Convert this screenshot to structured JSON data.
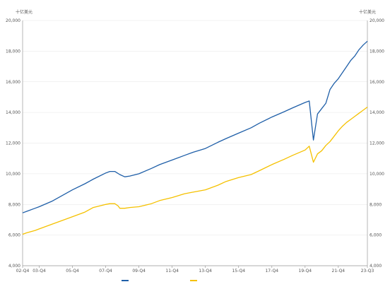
{
  "chart_data": {
    "type": "line",
    "title": "",
    "unit_left": "十亿美元",
    "unit_right": "十亿美元",
    "source": "",
    "grid": true,
    "legend_position": "bottom",
    "ylim": [
      4000,
      20000
    ],
    "yticks": [
      "4,000",
      "6,000",
      "8,000",
      "10,000",
      "12,000",
      "14,000",
      "16,000",
      "18,000",
      "20,000"
    ],
    "ytick_values": [
      4000,
      6000,
      8000,
      10000,
      12000,
      14000,
      16000,
      18000,
      20000
    ],
    "xlim": [
      2002.75,
      2023.5
    ],
    "xticks": [
      "02-Q4",
      "03-Q4",
      "05-Q4",
      "07-Q4",
      "09-Q4",
      "11-Q4",
      "13-Q4",
      "15-Q4",
      "17-Q4",
      "19-Q4",
      "21-Q4",
      "23-Q3"
    ],
    "xtick_values": [
      2002.75,
      2003.75,
      2005.75,
      2007.75,
      2009.75,
      2011.75,
      2013.75,
      2015.75,
      2017.75,
      2019.75,
      2021.75,
      2023.5
    ],
    "series": [
      {
        "name": "",
        "color": "#1f5fa8",
        "points": [
          [
            2002.75,
            7450
          ],
          [
            2003.0,
            7550
          ],
          [
            2003.5,
            7750
          ],
          [
            2003.75,
            7850
          ],
          [
            2004.5,
            8200
          ],
          [
            2005.0,
            8500
          ],
          [
            2005.75,
            8950
          ],
          [
            2006.5,
            9350
          ],
          [
            2007.0,
            9650
          ],
          [
            2007.75,
            10050
          ],
          [
            2008.0,
            10150
          ],
          [
            2008.3,
            10150
          ],
          [
            2008.6,
            9950
          ],
          [
            2008.9,
            9800
          ],
          [
            2009.2,
            9850
          ],
          [
            2009.75,
            10000
          ],
          [
            2010.5,
            10350
          ],
          [
            2011.0,
            10600
          ],
          [
            2011.75,
            10900
          ],
          [
            2012.5,
            11200
          ],
          [
            2013.0,
            11400
          ],
          [
            2013.75,
            11650
          ],
          [
            2014.5,
            12050
          ],
          [
            2015.0,
            12300
          ],
          [
            2015.75,
            12650
          ],
          [
            2016.5,
            13000
          ],
          [
            2017.0,
            13300
          ],
          [
            2017.75,
            13700
          ],
          [
            2018.5,
            14050
          ],
          [
            2019.0,
            14300
          ],
          [
            2019.75,
            14650
          ],
          [
            2020.0,
            14750
          ],
          [
            2020.25,
            12200
          ],
          [
            2020.5,
            13900
          ],
          [
            2020.75,
            14250
          ],
          [
            2021.0,
            14600
          ],
          [
            2021.25,
            15500
          ],
          [
            2021.5,
            15900
          ],
          [
            2021.75,
            16200
          ],
          [
            2022.0,
            16600
          ],
          [
            2022.25,
            17000
          ],
          [
            2022.5,
            17400
          ],
          [
            2022.75,
            17700
          ],
          [
            2023.0,
            18100
          ],
          [
            2023.25,
            18400
          ],
          [
            2023.5,
            18650
          ]
        ]
      },
      {
        "name": "",
        "color": "#f5c100",
        "points": [
          [
            2002.75,
            6050
          ],
          [
            2003.0,
            6150
          ],
          [
            2003.5,
            6300
          ],
          [
            2003.75,
            6400
          ],
          [
            2004.5,
            6700
          ],
          [
            2005.0,
            6900
          ],
          [
            2005.75,
            7200
          ],
          [
            2006.5,
            7500
          ],
          [
            2007.0,
            7800
          ],
          [
            2007.75,
            8000
          ],
          [
            2008.0,
            8050
          ],
          [
            2008.3,
            8050
          ],
          [
            2008.5,
            7900
          ],
          [
            2008.6,
            7750
          ],
          [
            2008.9,
            7750
          ],
          [
            2009.2,
            7800
          ],
          [
            2009.75,
            7850
          ],
          [
            2010.5,
            8050
          ],
          [
            2011.0,
            8250
          ],
          [
            2011.75,
            8450
          ],
          [
            2012.5,
            8700
          ],
          [
            2013.0,
            8800
          ],
          [
            2013.75,
            8950
          ],
          [
            2014.5,
            9250
          ],
          [
            2015.0,
            9500
          ],
          [
            2015.75,
            9750
          ],
          [
            2016.5,
            9950
          ],
          [
            2017.0,
            10200
          ],
          [
            2017.75,
            10600
          ],
          [
            2018.5,
            10950
          ],
          [
            2019.0,
            11200
          ],
          [
            2019.75,
            11550
          ],
          [
            2020.0,
            11800
          ],
          [
            2020.25,
            10750
          ],
          [
            2020.5,
            11300
          ],
          [
            2020.75,
            11500
          ],
          [
            2021.0,
            11850
          ],
          [
            2021.25,
            12100
          ],
          [
            2021.5,
            12450
          ],
          [
            2021.75,
            12800
          ],
          [
            2022.0,
            13100
          ],
          [
            2022.25,
            13350
          ],
          [
            2022.5,
            13550
          ],
          [
            2022.75,
            13750
          ],
          [
            2023.0,
            13950
          ],
          [
            2023.25,
            14150
          ],
          [
            2023.5,
            14350
          ]
        ]
      }
    ]
  }
}
